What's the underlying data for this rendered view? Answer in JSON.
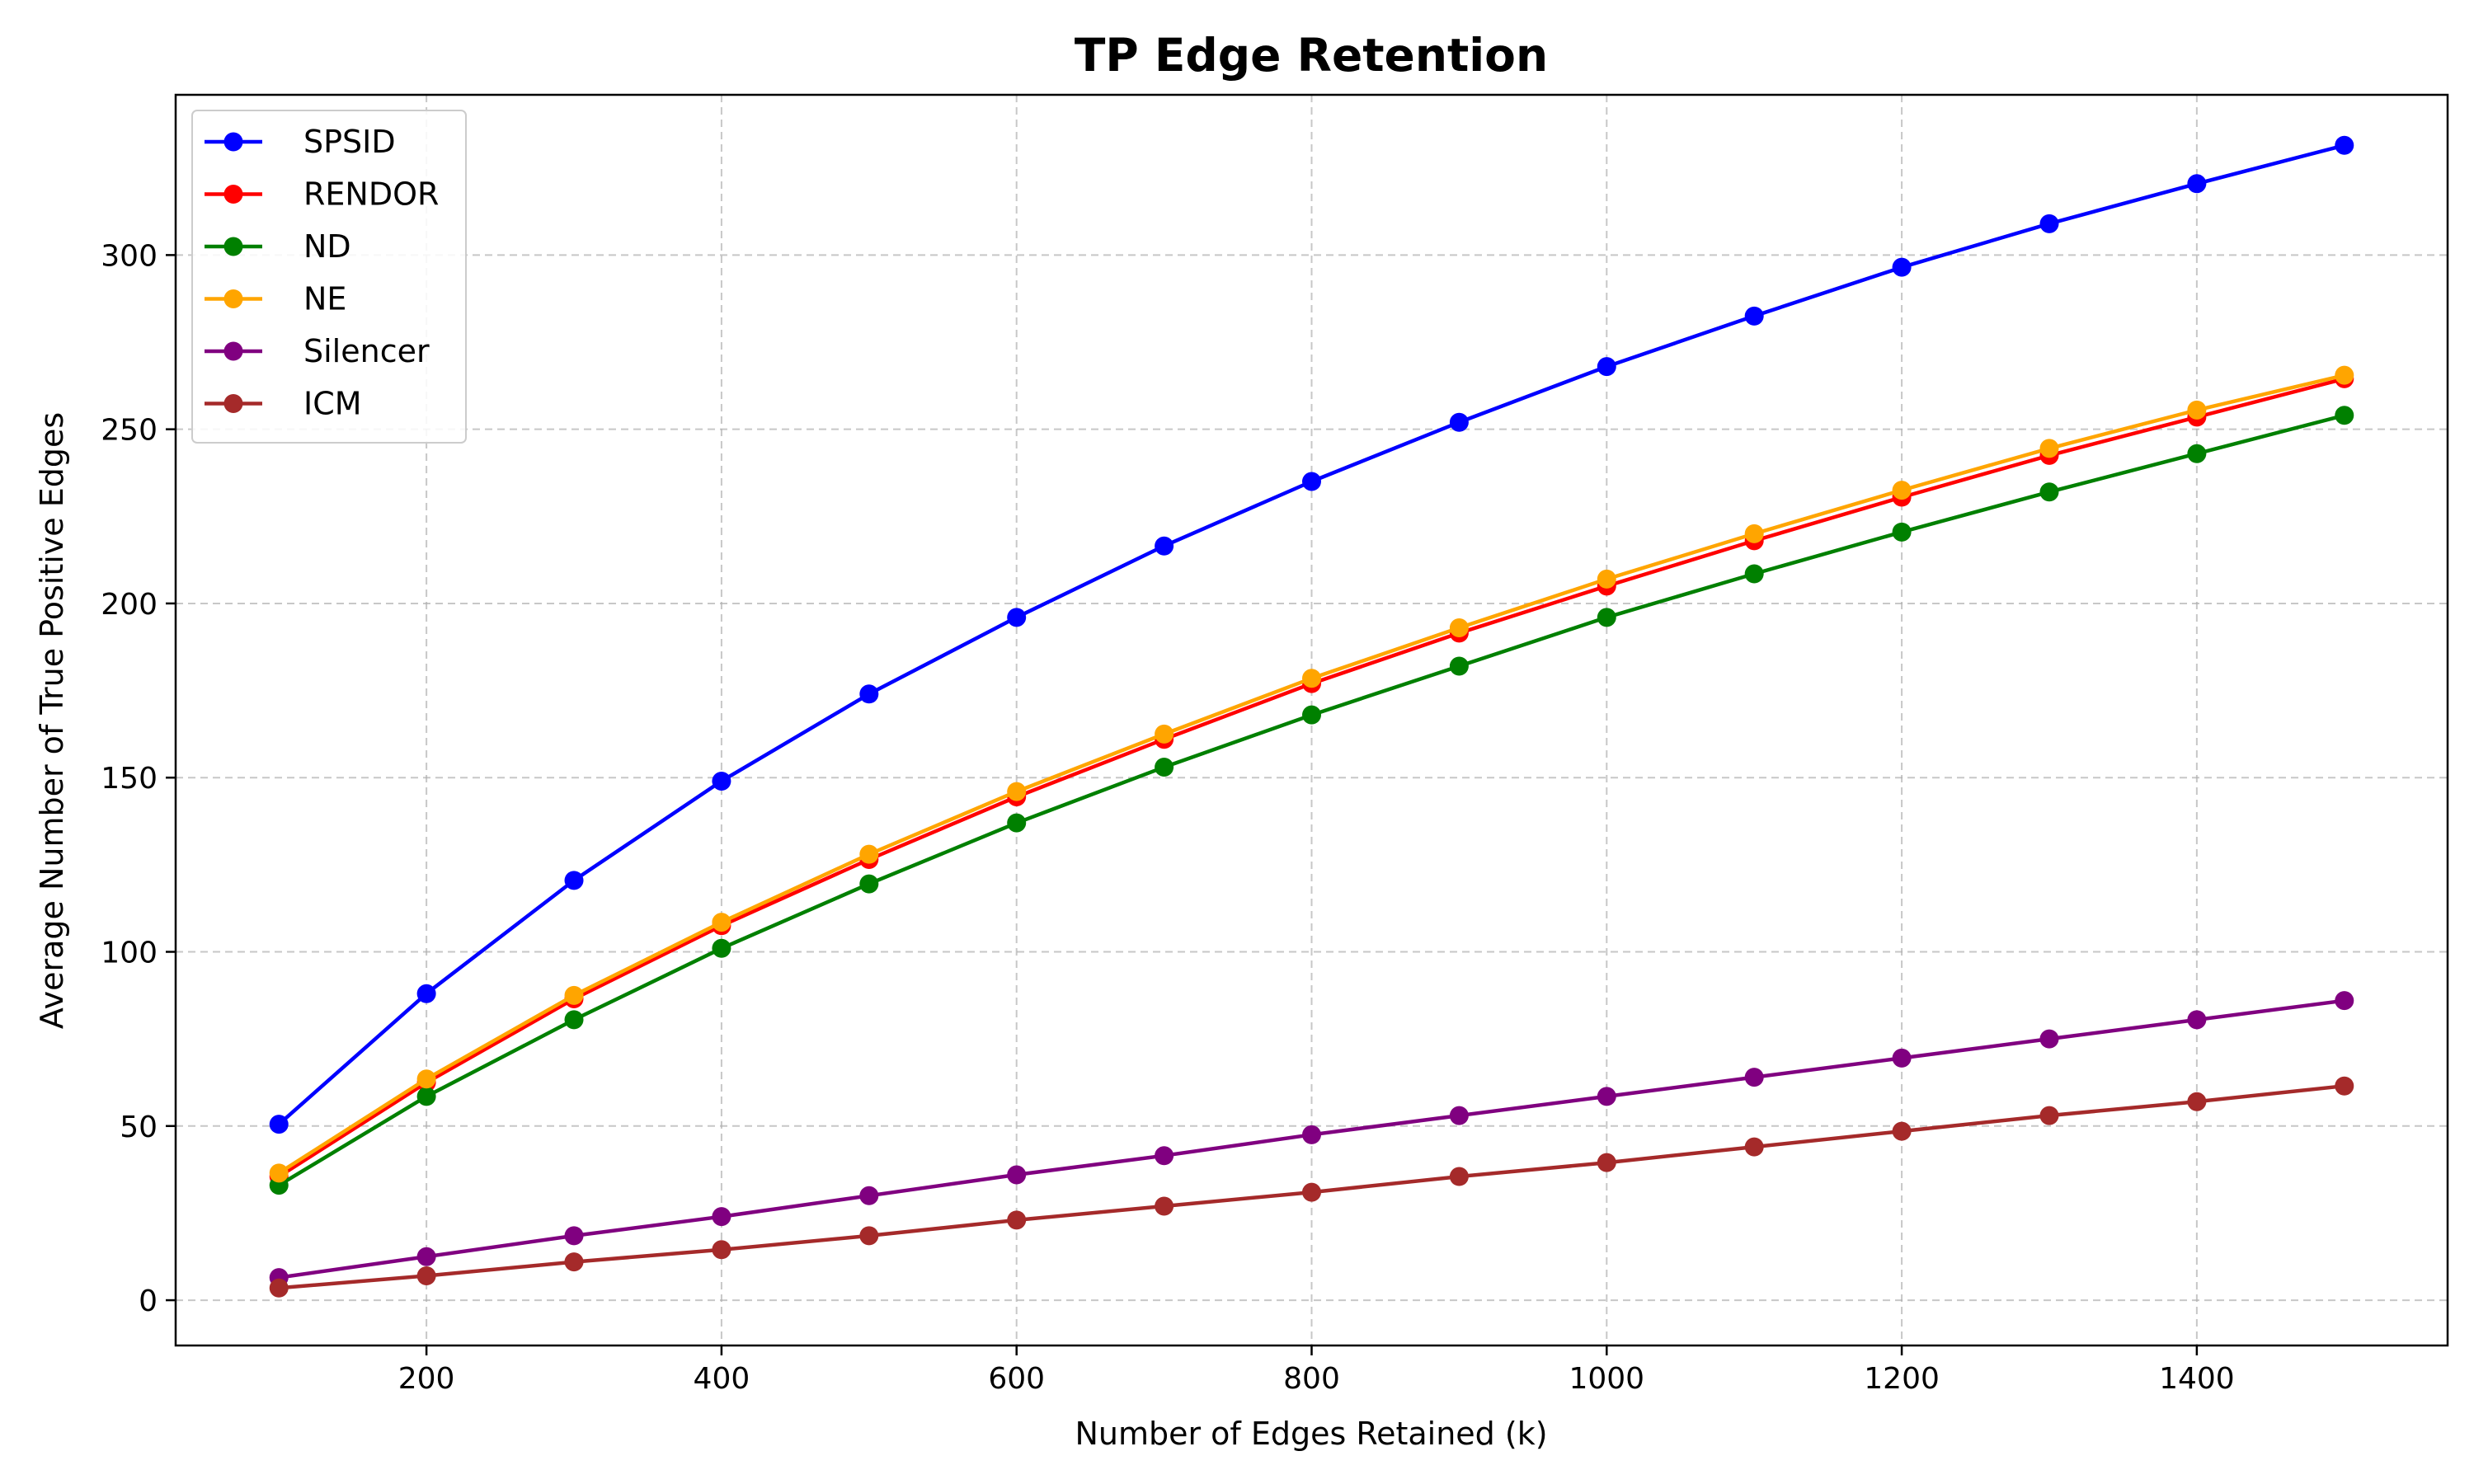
{
  "chart_data": {
    "type": "line",
    "title": "TP Edge Retention",
    "xlabel": "Number of Edges Retained (k)",
    "ylabel": "Average Number of True Positive Edges",
    "x": [
      100,
      200,
      300,
      400,
      500,
      600,
      700,
      800,
      900,
      1000,
      1100,
      1200,
      1300,
      1400,
      1500
    ],
    "xlim": [
      30,
      1570
    ],
    "ylim": [
      -13,
      346
    ],
    "xticks": [
      200,
      400,
      600,
      800,
      1000,
      1200,
      1400
    ],
    "yticks": [
      0,
      50,
      100,
      150,
      200,
      250,
      300
    ],
    "grid": true,
    "legend_position": "top-left",
    "series": [
      {
        "name": "SPSID",
        "color": "#0000ff",
        "values": [
          50.5,
          88,
          120.5,
          149,
          174,
          196,
          216.5,
          235,
          252,
          268,
          282.5,
          296.5,
          309,
          320.5,
          331.5
        ]
      },
      {
        "name": "RENDOR",
        "color": "#ff0000",
        "values": [
          35.5,
          62.5,
          86.5,
          107.5,
          126.5,
          144.5,
          161,
          177,
          191.5,
          205,
          218,
          230.5,
          242.5,
          253.5,
          264.5
        ]
      },
      {
        "name": "ND",
        "color": "#008000",
        "values": [
          33,
          58.5,
          80.5,
          101,
          119.5,
          137,
          153,
          168,
          182,
          196,
          208.5,
          220.5,
          232,
          243,
          254
        ]
      },
      {
        "name": "NE",
        "color": "#ffa500",
        "values": [
          36.5,
          63.5,
          87.5,
          108.5,
          128,
          146,
          162.5,
          178.5,
          193,
          207,
          220,
          232.5,
          244.5,
          255.5,
          265.5
        ]
      },
      {
        "name": "Silencer",
        "color": "#800080",
        "values": [
          6.5,
          12.5,
          18.5,
          24,
          30,
          36,
          41.5,
          47.5,
          53,
          58.5,
          64,
          69.5,
          75,
          80.5,
          86
        ]
      },
      {
        "name": "ICM",
        "color": "#a52a2a",
        "values": [
          3.5,
          7,
          11,
          14.5,
          18.5,
          23,
          27,
          31,
          35.5,
          39.5,
          44,
          48.5,
          53,
          57,
          61.5
        ]
      }
    ]
  }
}
